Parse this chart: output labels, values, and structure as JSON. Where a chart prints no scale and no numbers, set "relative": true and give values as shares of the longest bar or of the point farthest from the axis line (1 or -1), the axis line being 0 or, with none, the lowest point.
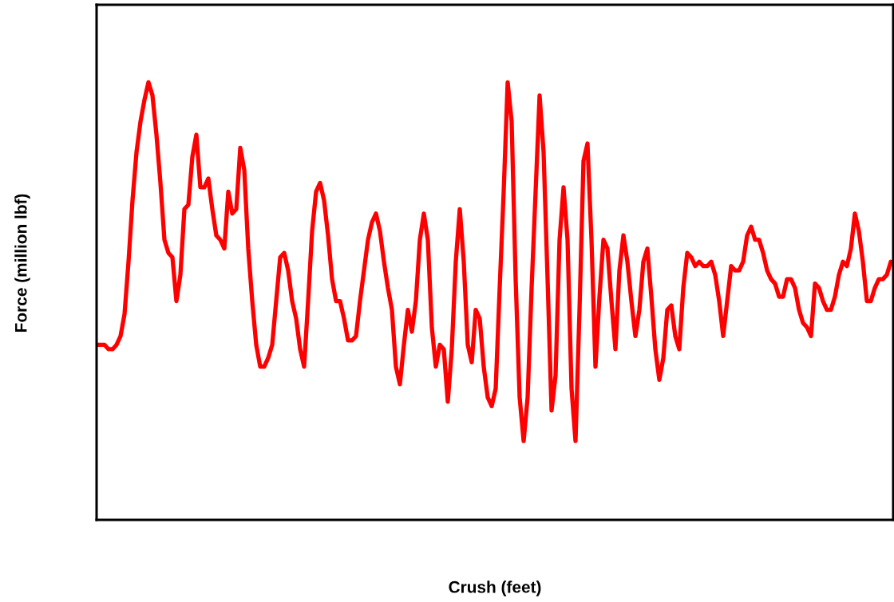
{
  "chart_data": {
    "type": "line",
    "relative": true,
    "xlabel": "Crush (feet)",
    "ylabel": "Force (million lbf)",
    "grid": false,
    "marker": "none",
    "line_style": "solid",
    "categories": [
      null,
      null,
      null,
      null,
      null,
      null,
      null,
      null,
      null,
      null,
      null,
      null,
      null,
      null,
      null,
      null,
      null,
      null,
      null,
      null,
      null,
      null,
      null,
      null,
      null,
      null,
      null,
      null,
      null,
      null,
      null,
      null,
      null,
      null,
      null,
      null,
      null,
      null,
      null,
      null,
      null,
      null,
      null,
      null,
      null,
      null,
      null,
      null,
      null,
      null,
      null,
      null,
      null,
      null,
      null,
      null,
      null,
      null,
      null,
      null,
      null,
      null,
      null,
      null,
      null,
      null,
      null,
      null,
      null,
      null,
      null,
      null,
      null,
      null,
      null,
      null,
      null,
      null,
      null,
      null,
      null,
      null,
      null,
      null,
      null,
      null,
      null,
      null,
      null,
      null,
      null,
      null,
      null,
      null,
      null,
      null,
      null,
      null,
      null,
      null,
      null,
      null,
      null,
      null,
      null,
      null,
      null,
      null,
      null,
      null,
      null,
      null,
      null,
      null,
      null,
      null,
      null,
      null,
      null,
      null,
      null,
      null,
      null,
      null,
      null,
      null,
      null,
      null,
      null,
      null,
      null,
      null,
      null,
      null,
      null,
      null,
      null,
      null,
      null,
      null,
      null,
      null,
      null,
      null,
      null,
      null,
      null,
      null,
      null,
      null,
      null,
      null,
      null,
      null,
      null,
      null,
      null,
      null,
      null,
      null,
      null,
      null,
      null,
      null,
      null,
      null,
      null,
      null,
      null,
      null,
      null,
      null,
      null,
      null,
      null,
      null,
      null,
      null,
      null,
      null,
      null,
      null,
      null,
      null,
      null,
      null,
      null,
      null,
      null,
      null,
      null,
      null,
      null,
      null,
      null,
      null,
      null,
      null,
      null,
      null
    ],
    "series": [
      {
        "color": "#ff0000",
        "values": [
          0.4,
          0.4,
          0.4,
          0.39,
          0.39,
          0.4,
          0.42,
          0.47,
          0.59,
          0.73,
          0.84,
          0.91,
          0.96,
          1.0,
          0.97,
          0.88,
          0.77,
          0.64,
          0.61,
          0.6,
          0.5,
          0.56,
          0.71,
          0.72,
          0.83,
          0.88,
          0.76,
          0.76,
          0.78,
          0.71,
          0.65,
          0.64,
          0.62,
          0.75,
          0.7,
          0.71,
          0.85,
          0.8,
          0.62,
          0.5,
          0.4,
          0.35,
          0.35,
          0.37,
          0.4,
          0.5,
          0.6,
          0.61,
          0.57,
          0.5,
          0.46,
          0.39,
          0.35,
          0.5,
          0.66,
          0.75,
          0.77,
          0.73,
          0.65,
          0.55,
          0.5,
          0.5,
          0.46,
          0.41,
          0.41,
          0.42,
          0.5,
          0.57,
          0.64,
          0.68,
          0.7,
          0.66,
          0.59,
          0.53,
          0.48,
          0.35,
          0.31,
          0.4,
          0.48,
          0.43,
          0.5,
          0.64,
          0.7,
          0.64,
          0.44,
          0.35,
          0.4,
          0.39,
          0.27,
          0.39,
          0.59,
          0.71,
          0.59,
          0.4,
          0.36,
          0.48,
          0.46,
          0.35,
          0.28,
          0.26,
          0.3,
          0.53,
          0.75,
          1.0,
          0.91,
          0.55,
          0.28,
          0.18,
          0.28,
          0.53,
          0.75,
          0.97,
          0.84,
          0.55,
          0.25,
          0.33,
          0.64,
          0.76,
          0.64,
          0.3,
          0.18,
          0.48,
          0.82,
          0.86,
          0.64,
          0.35,
          0.51,
          0.64,
          0.62,
          0.5,
          0.39,
          0.57,
          0.65,
          0.59,
          0.5,
          0.42,
          0.48,
          0.59,
          0.62,
          0.51,
          0.39,
          0.32,
          0.37,
          0.48,
          0.49,
          0.42,
          0.39,
          0.53,
          0.61,
          0.6,
          0.58,
          0.59,
          0.58,
          0.58,
          0.59,
          0.56,
          0.5,
          0.42,
          0.5,
          0.58,
          0.57,
          0.57,
          0.59,
          0.65,
          0.67,
          0.64,
          0.64,
          0.61,
          0.57,
          0.55,
          0.54,
          0.51,
          0.51,
          0.55,
          0.55,
          0.53,
          0.48,
          0.45,
          0.44,
          0.42,
          0.54,
          0.53,
          0.5,
          0.48,
          0.48,
          0.51,
          0.56,
          0.59,
          0.58,
          0.62,
          0.7,
          0.66,
          0.59,
          0.5,
          0.5,
          0.53,
          0.55,
          0.55,
          0.56,
          0.59
        ]
      }
    ]
  }
}
